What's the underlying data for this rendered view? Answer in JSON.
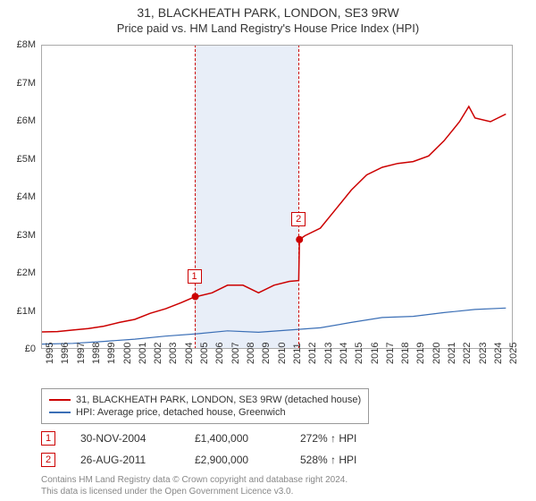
{
  "title_line1": "31, BLACKHEATH PARK, LONDON, SE3 9RW",
  "title_line2": "Price paid vs. HM Land Registry's House Price Index (HPI)",
  "chart": {
    "type": "line",
    "x_min": 1995,
    "x_max": 2025.5,
    "y_min": 0,
    "y_max": 8000000,
    "y_tick_step": 1000000,
    "y_tick_prefix": "£",
    "y_tick_suffix": "M",
    "x_ticks": [
      1995,
      1996,
      1997,
      1998,
      1999,
      2000,
      2001,
      2002,
      2003,
      2004,
      2005,
      2006,
      2007,
      2008,
      2009,
      2010,
      2011,
      2012,
      2013,
      2014,
      2015,
      2016,
      2017,
      2018,
      2019,
      2020,
      2021,
      2022,
      2023,
      2024,
      2025
    ],
    "background_color": "#ffffff",
    "border_color": "#aaaaaa",
    "shaded_band": {
      "x_start": 2004.91,
      "x_end": 2011.65,
      "color": "#e8eef8"
    },
    "series": [
      {
        "name": "31, BLACKHEATH PARK, LONDON, SE3 9RW (detached house)",
        "color": "#cc0000",
        "line_width": 1.5,
        "xy": [
          [
            1995,
            470000
          ],
          [
            1996,
            480000
          ],
          [
            1997,
            520000
          ],
          [
            1998,
            560000
          ],
          [
            1999,
            620000
          ],
          [
            2000,
            720000
          ],
          [
            2001,
            800000
          ],
          [
            2002,
            960000
          ],
          [
            2003,
            1080000
          ],
          [
            2004,
            1240000
          ],
          [
            2004.91,
            1400000
          ],
          [
            2005,
            1400000
          ],
          [
            2006,
            1500000
          ],
          [
            2007,
            1700000
          ],
          [
            2008,
            1700000
          ],
          [
            2009,
            1500000
          ],
          [
            2010,
            1700000
          ],
          [
            2011,
            1800000
          ],
          [
            2011.6,
            1820000
          ],
          [
            2011.65,
            2900000
          ],
          [
            2012,
            3000000
          ],
          [
            2013,
            3200000
          ],
          [
            2014,
            3700000
          ],
          [
            2015,
            4200000
          ],
          [
            2016,
            4600000
          ],
          [
            2017,
            4800000
          ],
          [
            2018,
            4900000
          ],
          [
            2019,
            4950000
          ],
          [
            2020,
            5100000
          ],
          [
            2021,
            5500000
          ],
          [
            2022,
            6000000
          ],
          [
            2022.6,
            6400000
          ],
          [
            2023,
            6100000
          ],
          [
            2024,
            6000000
          ],
          [
            2025,
            6200000
          ]
        ]
      },
      {
        "name": "HPI: Average price, detached house, Greenwich",
        "color": "#3b6fb6",
        "line_width": 1.2,
        "xy": [
          [
            1995,
            150000
          ],
          [
            1997,
            170000
          ],
          [
            1999,
            220000
          ],
          [
            2001,
            280000
          ],
          [
            2003,
            360000
          ],
          [
            2005,
            420000
          ],
          [
            2007,
            500000
          ],
          [
            2009,
            460000
          ],
          [
            2011,
            520000
          ],
          [
            2013,
            580000
          ],
          [
            2015,
            720000
          ],
          [
            2017,
            850000
          ],
          [
            2019,
            880000
          ],
          [
            2021,
            980000
          ],
          [
            2023,
            1060000
          ],
          [
            2025,
            1100000
          ]
        ]
      }
    ],
    "markers": [
      {
        "label": "1",
        "x": 2004.91,
        "y": 1400000,
        "color": "#cc0000"
      },
      {
        "label": "2",
        "x": 2011.65,
        "y": 2900000,
        "color": "#cc0000"
      }
    ]
  },
  "legend": {
    "items": [
      {
        "color": "#cc0000",
        "label": "31, BLACKHEATH PARK, LONDON, SE3 9RW (detached house)"
      },
      {
        "color": "#3b6fb6",
        "label": "HPI: Average price, detached house, Greenwich"
      }
    ]
  },
  "sales": [
    {
      "badge": "1",
      "date": "30-NOV-2004",
      "price": "£1,400,000",
      "hpi": "272% ↑ HPI"
    },
    {
      "badge": "2",
      "date": "26-AUG-2011",
      "price": "£2,900,000",
      "hpi": "528% ↑ HPI"
    }
  ],
  "disclaimer_line1": "Contains HM Land Registry data © Crown copyright and database right 2024.",
  "disclaimer_line2": "This data is licensed under the Open Government Licence v3.0."
}
